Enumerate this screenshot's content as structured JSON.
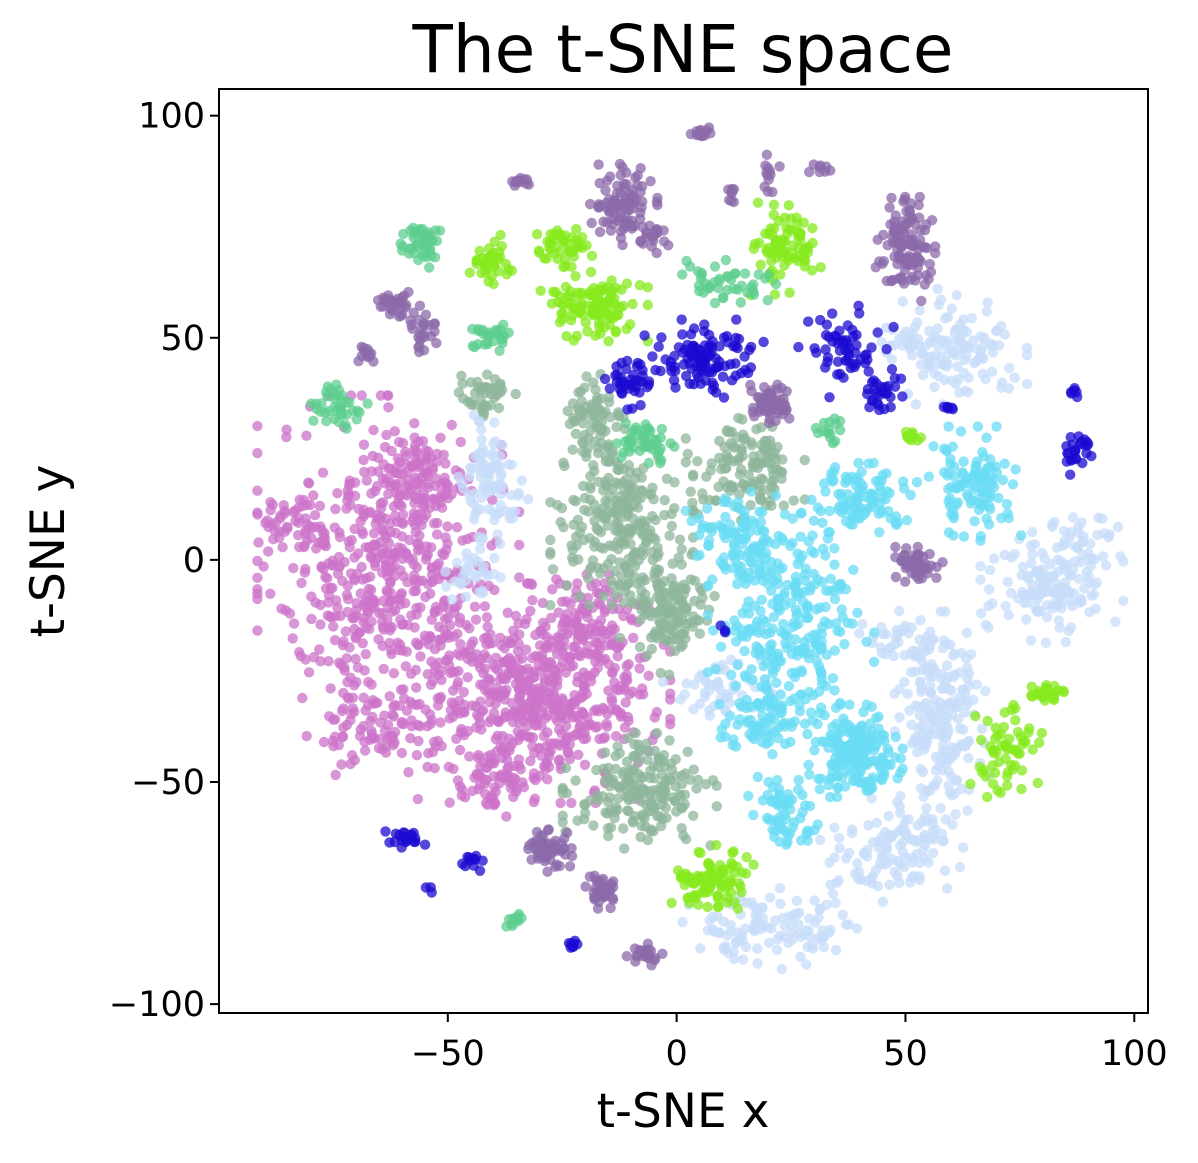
{
  "chart_data": {
    "type": "scatter",
    "title": "The t-SNE space",
    "xlabel": "t-SNE x",
    "ylabel": "t-SNE y",
    "xlim": [
      -100,
      103
    ],
    "ylim": [
      -102,
      106
    ],
    "xticks": [
      -50,
      0,
      50,
      100
    ],
    "yticks": [
      -100,
      -50,
      0,
      50,
      100
    ],
    "xtick_labels": [
      "−50",
      "0",
      "50",
      "100"
    ],
    "ytick_labels": [
      "−100",
      "−50",
      "0",
      "50",
      "100"
    ],
    "grid": false,
    "legend": "none",
    "point_opacity": 0.75,
    "series": [
      {
        "color": "#CC73C9",
        "clusters": [
          {
            "cx": -63,
            "cy": -2,
            "rx": 22,
            "ry": 30,
            "n": 520
          },
          {
            "cx": -56,
            "cy": 18,
            "rx": 9,
            "ry": 9,
            "n": 90
          },
          {
            "cx": -84,
            "cy": 8,
            "rx": 6,
            "ry": 5,
            "n": 40
          },
          {
            "cx": -66,
            "cy": -38,
            "rx": 10,
            "ry": 8,
            "n": 70
          },
          {
            "cx": -30,
            "cy": -30,
            "rx": 22,
            "ry": 19,
            "n": 560
          },
          {
            "cx": -18,
            "cy": -15,
            "rx": 9,
            "ry": 9,
            "n": 80
          },
          {
            "cx": -40,
            "cy": -50,
            "rx": 9,
            "ry": 6,
            "n": 60
          }
        ]
      },
      {
        "color": "#8DB59B",
        "clusters": [
          {
            "cx": -12,
            "cy": 8,
            "rx": 12,
            "ry": 14,
            "n": 230
          },
          {
            "cx": -2,
            "cy": -11,
            "rx": 8,
            "ry": 12,
            "n": 140
          },
          {
            "cx": -18,
            "cy": 30,
            "rx": 6,
            "ry": 10,
            "n": 80
          },
          {
            "cx": -42,
            "cy": 37,
            "rx": 7,
            "ry": 5,
            "n": 40
          },
          {
            "cx": 15,
            "cy": 20,
            "rx": 10,
            "ry": 10,
            "n": 130
          },
          {
            "cx": -8,
            "cy": -52,
            "rx": 13,
            "ry": 10,
            "n": 190
          }
        ]
      },
      {
        "color": "#C7DCF9",
        "clusters": [
          {
            "cx": -40,
            "cy": 17,
            "rx": 6,
            "ry": 12,
            "n": 90
          },
          {
            "cx": -44,
            "cy": -3,
            "rx": 5,
            "ry": 5,
            "n": 30
          },
          {
            "cx": 8,
            "cy": -29,
            "rx": 10,
            "ry": 5,
            "n": 50
          },
          {
            "cx": 61,
            "cy": 48,
            "rx": 12,
            "ry": 10,
            "n": 120
          },
          {
            "cx": 50,
            "cy": 49,
            "rx": 4,
            "ry": 3,
            "n": 15
          },
          {
            "cx": 82,
            "cy": -5,
            "rx": 12,
            "ry": 11,
            "n": 150
          },
          {
            "cx": 87,
            "cy": 7,
            "rx": 5,
            "ry": 4,
            "n": 20
          },
          {
            "cx": 58,
            "cy": -35,
            "rx": 8,
            "ry": 18,
            "n": 180
          },
          {
            "cx": 50,
            "cy": -18,
            "rx": 8,
            "ry": 5,
            "n": 40
          },
          {
            "cx": 47,
            "cy": -65,
            "rx": 12,
            "ry": 10,
            "n": 120
          },
          {
            "cx": 20,
            "cy": -83,
            "rx": 16,
            "ry": 7,
            "n": 110
          }
        ]
      },
      {
        "color": "#6ADCF4",
        "clusters": [
          {
            "cx": 25,
            "cy": -15,
            "rx": 14,
            "ry": 20,
            "n": 280
          },
          {
            "cx": 15,
            "cy": 5,
            "rx": 10,
            "ry": 8,
            "n": 100
          },
          {
            "cx": 39,
            "cy": -43,
            "rx": 8,
            "ry": 8,
            "n": 180
          },
          {
            "cx": 20,
            "cy": -36,
            "rx": 8,
            "ry": 6,
            "n": 70
          },
          {
            "cx": 24,
            "cy": -57,
            "rx": 7,
            "ry": 7,
            "n": 60
          },
          {
            "cx": 41,
            "cy": 14,
            "rx": 9,
            "ry": 6,
            "n": 100
          },
          {
            "cx": 65,
            "cy": 17,
            "rx": 8,
            "ry": 10,
            "n": 110
          }
        ]
      },
      {
        "color": "#8B6AA9",
        "clusters": [
          {
            "cx": -12,
            "cy": 80,
            "rx": 6,
            "ry": 7,
            "n": 90
          },
          {
            "cx": -5,
            "cy": 73,
            "rx": 3,
            "ry": 3,
            "n": 20
          },
          {
            "cx": 5,
            "cy": 96,
            "rx": 2.5,
            "ry": 1,
            "n": 15
          },
          {
            "cx": 20,
            "cy": 88,
            "rx": 3,
            "ry": 4,
            "n": 12
          },
          {
            "cx": 32,
            "cy": 88,
            "rx": 2.5,
            "ry": 1,
            "n": 8
          },
          {
            "cx": -34,
            "cy": 85,
            "rx": 2,
            "ry": 1.5,
            "n": 12
          },
          {
            "cx": 50,
            "cy": 70,
            "rx": 5,
            "ry": 9,
            "n": 110
          },
          {
            "cx": -62,
            "cy": 58,
            "rx": 3,
            "ry": 3,
            "n": 30
          },
          {
            "cx": -55,
            "cy": 52,
            "rx": 3,
            "ry": 4,
            "n": 25
          },
          {
            "cx": -68,
            "cy": 46,
            "rx": 2,
            "ry": 2,
            "n": 12
          },
          {
            "cx": 20,
            "cy": 36,
            "rx": 4,
            "ry": 4,
            "n": 60
          },
          {
            "cx": 53,
            "cy": -1,
            "rx": 4,
            "ry": 3,
            "n": 55
          },
          {
            "cx": -28,
            "cy": -65,
            "rx": 4,
            "ry": 4,
            "n": 60
          },
          {
            "cx": -16,
            "cy": -75,
            "rx": 3,
            "ry": 4,
            "n": 35
          },
          {
            "cx": -7,
            "cy": -89,
            "rx": 3,
            "ry": 2,
            "n": 20
          },
          {
            "cx": 12,
            "cy": 82,
            "rx": 1.5,
            "ry": 2,
            "n": 8
          }
        ]
      },
      {
        "color": "#85EA1C",
        "clusters": [
          {
            "cx": -25,
            "cy": 70,
            "rx": 5,
            "ry": 4,
            "n": 45
          },
          {
            "cx": -18,
            "cy": 57,
            "rx": 9,
            "ry": 6,
            "n": 110
          },
          {
            "cx": -40,
            "cy": 67,
            "rx": 4,
            "ry": 5,
            "n": 35
          },
          {
            "cx": 24,
            "cy": 70,
            "rx": 6,
            "ry": 8,
            "n": 80
          },
          {
            "cx": 8,
            "cy": -72,
            "rx": 7,
            "ry": 6,
            "n": 90
          },
          {
            "cx": 72,
            "cy": -43,
            "rx": 6,
            "ry": 8,
            "n": 60
          },
          {
            "cx": 81,
            "cy": -30,
            "rx": 4,
            "ry": 2,
            "n": 25
          },
          {
            "cx": 52,
            "cy": 28,
            "rx": 2,
            "ry": 1.5,
            "n": 10
          }
        ]
      },
      {
        "color": "#5ECE8F",
        "clusters": [
          {
            "cx": -56,
            "cy": 71,
            "rx": 4,
            "ry": 4,
            "n": 45
          },
          {
            "cx": -41,
            "cy": 50,
            "rx": 4,
            "ry": 3,
            "n": 30
          },
          {
            "cx": -74,
            "cy": 34,
            "rx": 5,
            "ry": 5,
            "n": 40
          },
          {
            "cx": 10,
            "cy": 63,
            "rx": 9,
            "ry": 4,
            "n": 45
          },
          {
            "cx": -7,
            "cy": 27,
            "rx": 5,
            "ry": 4,
            "n": 45
          },
          {
            "cx": 33,
            "cy": 30,
            "rx": 3,
            "ry": 4,
            "n": 15
          },
          {
            "cx": -35,
            "cy": -81,
            "rx": 2,
            "ry": 1.5,
            "n": 12
          }
        ]
      },
      {
        "color": "#1B0AD0",
        "clusters": [
          {
            "cx": 6,
            "cy": 45,
            "rx": 10,
            "ry": 7,
            "n": 110
          },
          {
            "cx": -10,
            "cy": 40,
            "rx": 5,
            "ry": 5,
            "n": 40
          },
          {
            "cx": 37,
            "cy": 47,
            "rx": 8,
            "ry": 8,
            "n": 60
          },
          {
            "cx": 45,
            "cy": 38,
            "rx": 4,
            "ry": 4,
            "n": 25
          },
          {
            "cx": 87,
            "cy": 24,
            "rx": 3,
            "ry": 4,
            "n": 25
          },
          {
            "cx": 87,
            "cy": 38,
            "rx": 1.5,
            "ry": 1,
            "n": 6
          },
          {
            "cx": 59,
            "cy": 34,
            "rx": 1.5,
            "ry": 1,
            "n": 6
          },
          {
            "cx": -60,
            "cy": -63,
            "rx": 4,
            "ry": 2,
            "n": 20
          },
          {
            "cx": -45,
            "cy": -68,
            "rx": 2,
            "ry": 2,
            "n": 12
          },
          {
            "cx": -23,
            "cy": -87,
            "rx": 1.5,
            "ry": 1,
            "n": 8
          },
          {
            "cx": -54,
            "cy": -74,
            "rx": 1,
            "ry": 1,
            "n": 3
          },
          {
            "cx": 10,
            "cy": -16,
            "rx": 1,
            "ry": 1,
            "n": 3
          }
        ]
      }
    ]
  }
}
